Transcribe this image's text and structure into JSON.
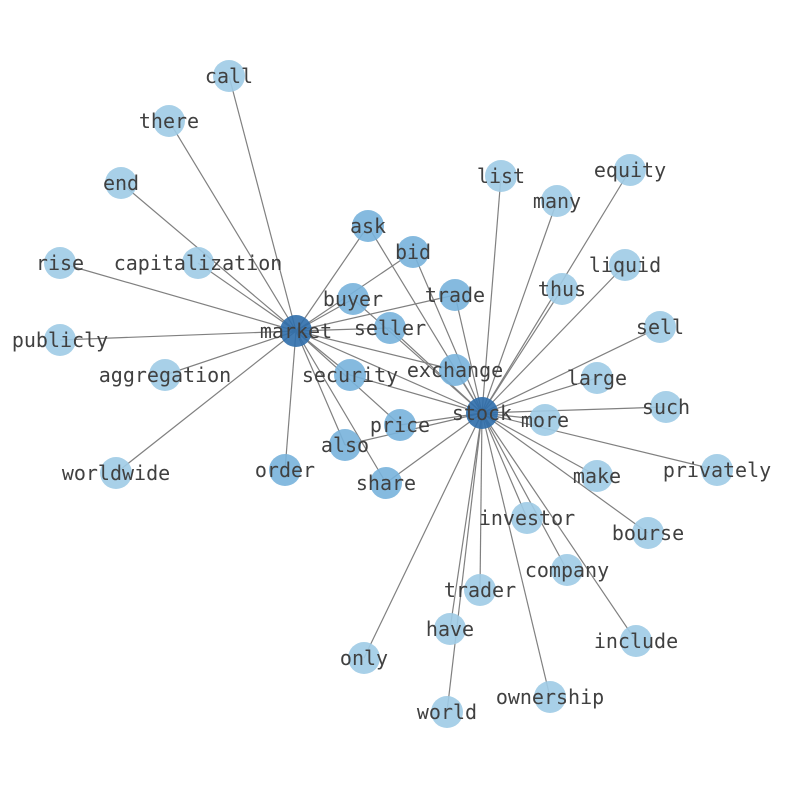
{
  "colors": {
    "edge": "#808080",
    "hub": "#2f6eab",
    "mid": "#78b3db",
    "leaf": "#9fcbe5",
    "label": "#404040"
  },
  "nodes": [
    {
      "id": "market",
      "tier": "hub"
    },
    {
      "id": "stock",
      "tier": "hub"
    },
    {
      "id": "ask",
      "tier": "mid"
    },
    {
      "id": "bid",
      "tier": "mid"
    },
    {
      "id": "buyer",
      "tier": "mid"
    },
    {
      "id": "seller",
      "tier": "mid"
    },
    {
      "id": "trade",
      "tier": "mid"
    },
    {
      "id": "security",
      "tier": "mid"
    },
    {
      "id": "exchange",
      "tier": "mid"
    },
    {
      "id": "price",
      "tier": "mid"
    },
    {
      "id": "also",
      "tier": "mid"
    },
    {
      "id": "order",
      "tier": "mid"
    },
    {
      "id": "share",
      "tier": "mid"
    },
    {
      "id": "call",
      "tier": "leaf"
    },
    {
      "id": "there",
      "tier": "leaf"
    },
    {
      "id": "end",
      "tier": "leaf"
    },
    {
      "id": "rise",
      "tier": "leaf"
    },
    {
      "id": "capitalization",
      "tier": "leaf"
    },
    {
      "id": "publicly",
      "tier": "leaf"
    },
    {
      "id": "aggregation",
      "tier": "leaf"
    },
    {
      "id": "worldwide",
      "tier": "leaf"
    },
    {
      "id": "list",
      "tier": "leaf"
    },
    {
      "id": "many",
      "tier": "leaf"
    },
    {
      "id": "equity",
      "tier": "leaf"
    },
    {
      "id": "liquid",
      "tier": "leaf"
    },
    {
      "id": "thus",
      "tier": "leaf"
    },
    {
      "id": "sell",
      "tier": "leaf"
    },
    {
      "id": "large",
      "tier": "leaf"
    },
    {
      "id": "such",
      "tier": "leaf"
    },
    {
      "id": "more",
      "tier": "leaf"
    },
    {
      "id": "privately",
      "tier": "leaf"
    },
    {
      "id": "make",
      "tier": "leaf"
    },
    {
      "id": "bourse",
      "tier": "leaf"
    },
    {
      "id": "investor",
      "tier": "leaf"
    },
    {
      "id": "company",
      "tier": "leaf"
    },
    {
      "id": "trader",
      "tier": "leaf"
    },
    {
      "id": "include",
      "tier": "leaf"
    },
    {
      "id": "have",
      "tier": "leaf"
    },
    {
      "id": "only",
      "tier": "leaf"
    },
    {
      "id": "ownership",
      "tier": "leaf"
    },
    {
      "id": "world",
      "tier": "leaf"
    }
  ],
  "edges": [
    [
      "market",
      "call"
    ],
    [
      "market",
      "there"
    ],
    [
      "market",
      "end"
    ],
    [
      "market",
      "rise"
    ],
    [
      "market",
      "capitalization"
    ],
    [
      "market",
      "publicly"
    ],
    [
      "market",
      "aggregation"
    ],
    [
      "market",
      "worldwide"
    ],
    [
      "market",
      "ask"
    ],
    [
      "market",
      "bid"
    ],
    [
      "market",
      "buyer"
    ],
    [
      "market",
      "seller"
    ],
    [
      "market",
      "trade"
    ],
    [
      "market",
      "security"
    ],
    [
      "market",
      "exchange"
    ],
    [
      "market",
      "price"
    ],
    [
      "market",
      "also"
    ],
    [
      "market",
      "order"
    ],
    [
      "market",
      "share"
    ],
    [
      "market",
      "stock"
    ],
    [
      "stock",
      "ask"
    ],
    [
      "stock",
      "bid"
    ],
    [
      "stock",
      "trade"
    ],
    [
      "stock",
      "buyer"
    ],
    [
      "stock",
      "seller"
    ],
    [
      "stock",
      "exchange"
    ],
    [
      "stock",
      "security"
    ],
    [
      "stock",
      "price"
    ],
    [
      "stock",
      "also"
    ],
    [
      "stock",
      "share"
    ],
    [
      "stock",
      "list"
    ],
    [
      "stock",
      "many"
    ],
    [
      "stock",
      "equity"
    ],
    [
      "stock",
      "liquid"
    ],
    [
      "stock",
      "thus"
    ],
    [
      "stock",
      "sell"
    ],
    [
      "stock",
      "large"
    ],
    [
      "stock",
      "such"
    ],
    [
      "stock",
      "more"
    ],
    [
      "stock",
      "privately"
    ],
    [
      "stock",
      "make"
    ],
    [
      "stock",
      "bourse"
    ],
    [
      "stock",
      "investor"
    ],
    [
      "stock",
      "company"
    ],
    [
      "stock",
      "trader"
    ],
    [
      "stock",
      "include"
    ],
    [
      "stock",
      "have"
    ],
    [
      "stock",
      "only"
    ],
    [
      "stock",
      "ownership"
    ],
    [
      "stock",
      "world"
    ]
  ]
}
